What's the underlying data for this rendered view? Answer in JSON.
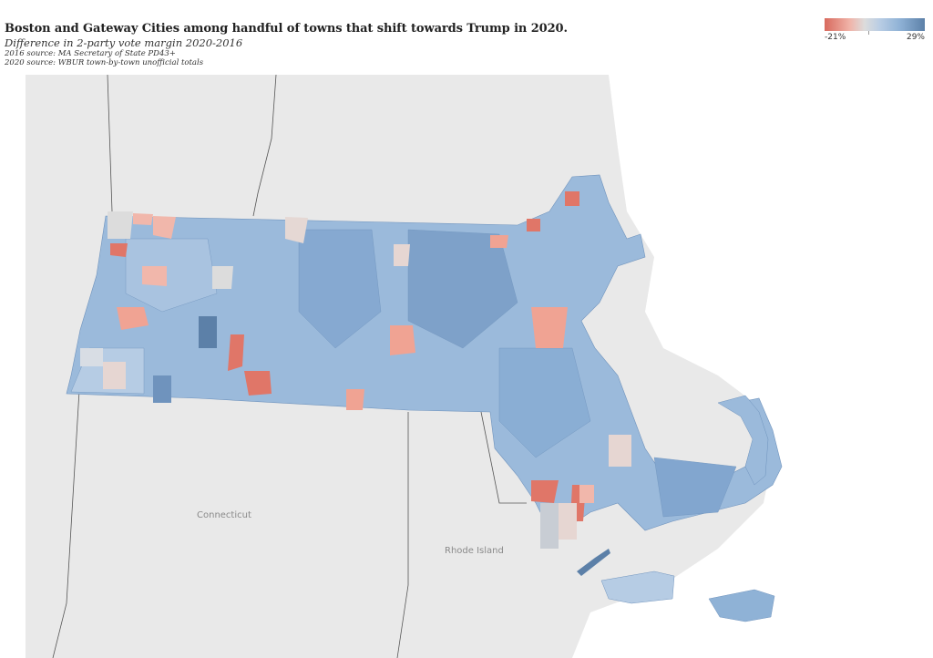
{
  "header": {
    "title": "Boston and Gateway Cities among handful of towns that shift towards Trump in 2020.",
    "subtitle": "Difference in 2-party vote margin 2020-2016",
    "source_2016": "2016 source: MA Secretary of State PD43+",
    "source_2020": "2020 source: WBUR town-by-town unofficial totals"
  },
  "legend": {
    "min_label": "-21%",
    "max_label": "29%",
    "colors": {
      "low": "#d86a5e",
      "mid": "#dcdcdc",
      "high": "#5c80a8"
    }
  },
  "map": {
    "labels": {
      "connecticut": "Connecticut",
      "rhode_island": "Rhode Island"
    },
    "colors": {
      "background": "#e8e8e8",
      "water": "#ffffff",
      "town_blue_light": "#b3cae3",
      "town_blue_mid": "#8fb2d6",
      "town_blue_dark": "#6f93bd",
      "town_red": "#e07668",
      "town_pink": "#f1b7ab"
    }
  }
}
